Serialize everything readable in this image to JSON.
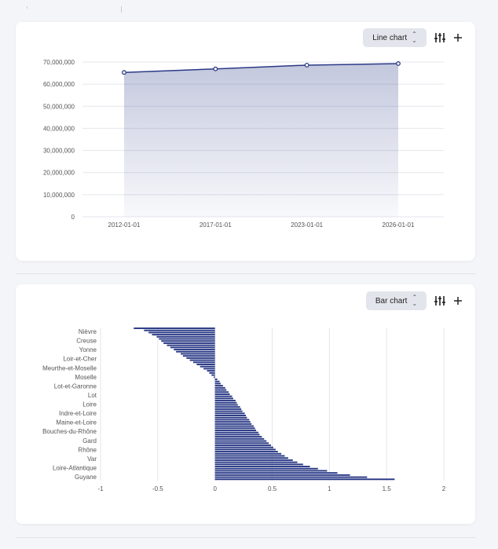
{
  "charts": [
    {
      "chart_type_label": "Line chart",
      "chart_data": {
        "type": "area",
        "x": [
          "2012-01-01",
          "2017-01-01",
          "2023-01-01",
          "2026-01-01"
        ],
        "series": [
          {
            "values": [
              65300000,
              66900000,
              68600000,
              69300000
            ]
          }
        ],
        "ylim": [
          0,
          70000000
        ],
        "yticks": [
          "0",
          "10,000,000",
          "20,000,000",
          "30,000,000",
          "40,000,000",
          "50,000,000",
          "60,000,000",
          "70,000,000"
        ],
        "grid": true,
        "line_color": "#2a3a86"
      }
    },
    {
      "chart_type_label": "Bar chart",
      "chart_data": {
        "type": "bar",
        "orientation": "horizontal",
        "labeled_categories": [
          "Nièvre",
          "Creuse",
          "Yonne",
          "Loir-et-Cher",
          "Meurthe-et-Moselle",
          "Moselle",
          "Lot-et-Garonne",
          "Lot",
          "Loire",
          "Indre-et-Loire",
          "Maine-et-Loire",
          "Bouches-du-Rhône",
          "Gard",
          "Rhône",
          "Var",
          "Loire-Atlantique",
          "Guyane"
        ],
        "values": [
          -0.71,
          -0.62,
          -0.58,
          -0.55,
          -0.51,
          -0.49,
          -0.47,
          -0.45,
          -0.42,
          -0.39,
          -0.36,
          -0.34,
          -0.3,
          -0.28,
          -0.25,
          -0.22,
          -0.19,
          -0.16,
          -0.13,
          -0.1,
          -0.07,
          -0.05,
          -0.03,
          -0.01,
          0.02,
          0.04,
          0.05,
          0.07,
          0.09,
          0.1,
          0.12,
          0.13,
          0.15,
          0.16,
          0.18,
          0.19,
          0.2,
          0.22,
          0.23,
          0.24,
          0.26,
          0.27,
          0.28,
          0.3,
          0.31,
          0.32,
          0.34,
          0.35,
          0.36,
          0.38,
          0.39,
          0.41,
          0.43,
          0.45,
          0.47,
          0.49,
          0.51,
          0.53,
          0.55,
          0.58,
          0.61,
          0.64,
          0.68,
          0.72,
          0.77,
          0.83,
          0.9,
          0.98,
          1.07,
          1.18,
          1.33,
          1.57
        ],
        "xlim": [
          -1,
          2
        ],
        "xticks": [
          "-1",
          "-0.5",
          "0",
          "0.5",
          "1",
          "1.5",
          "2"
        ],
        "grid": true,
        "bar_color": "#2a3a86"
      }
    }
  ]
}
